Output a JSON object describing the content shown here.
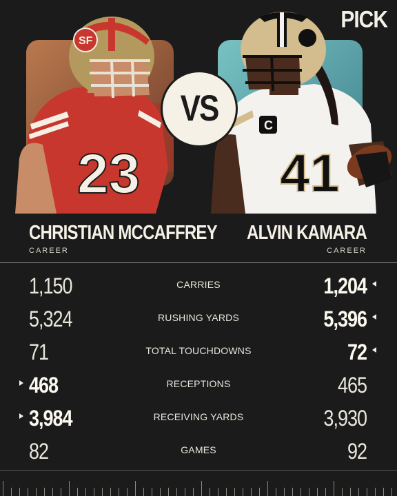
{
  "brand": {
    "logo_text": "PICK"
  },
  "vs_label": "VS",
  "players": {
    "left": {
      "name": "CHRISTIAN MCCAFFREY",
      "subtitle": "CAREER",
      "jersey_number": "23"
    },
    "right": {
      "name": "ALVIN KAMARA",
      "subtitle": "CAREER",
      "jersey_number": "41"
    }
  },
  "stats": [
    {
      "label": "CARRIES",
      "left": "1,150",
      "right": "1,204",
      "winner": "right"
    },
    {
      "label": "RUSHING YARDS",
      "left": "5,324",
      "right": "5,396",
      "winner": "right"
    },
    {
      "label": "TOTAL TOUCHDOWNS",
      "left": "71",
      "right": "72",
      "winner": "right"
    },
    {
      "label": "RECEPTIONS",
      "left": "468",
      "right": "465",
      "winner": "left"
    },
    {
      "label": "RECEIVING YARDS",
      "left": "3,984",
      "right": "3,930",
      "winner": "left"
    },
    {
      "label": "GAMES",
      "left": "82",
      "right": "92",
      "winner": "none"
    }
  ],
  "colors": {
    "background": "#1b1b1b",
    "text": "#f2f0e8",
    "niners_red": "#c8372d",
    "niners_gold": "#b3995d",
    "saints_gold": "#d3bc8d",
    "saints_black": "#101010"
  }
}
